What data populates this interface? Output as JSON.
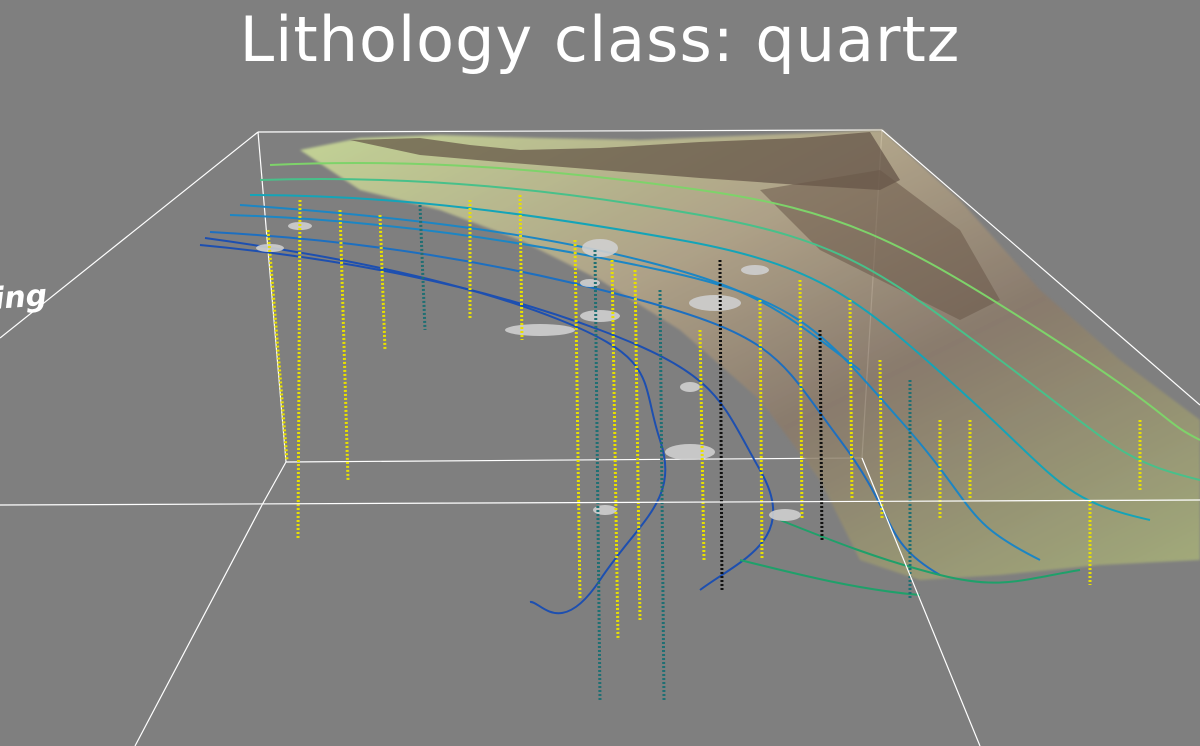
{
  "scene": {
    "title": "Lithology class: quartz",
    "axis_label_fragment": "ing",
    "colors": {
      "background": "#7f7f7f",
      "bounding_box": "#ffffff",
      "borehole_primary": "#e8e000",
      "borehole_secondary": "#1f6f73",
      "contour_low": "#1d4fb0",
      "contour_mid": "#14a4b8",
      "contour_high": "#7ed36a",
      "terrain_low": "#d9e58a",
      "terrain_high": "#5a4a3c",
      "lens": "#cfcfcf"
    },
    "icons": [
      "bounding-box-icon",
      "terrain-surface-icon"
    ]
  }
}
